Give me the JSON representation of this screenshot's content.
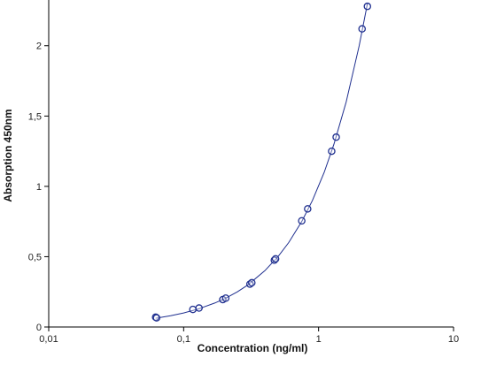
{
  "chart_data": {
    "type": "scatter",
    "title": "",
    "xlabel": "Concentration (ng/ml)",
    "ylabel": "Absorption 450nm",
    "x_scale": "log",
    "xlim": [
      0.01,
      10
    ],
    "ylim": [
      0,
      2.3
    ],
    "x_ticks": [
      0.01,
      0.1,
      1,
      10
    ],
    "x_tick_labels": [
      "0,01",
      "0,1",
      "1",
      "10"
    ],
    "y_ticks": [
      0,
      0.5,
      1,
      1.5,
      2
    ],
    "y_tick_labels": [
      "0",
      "0,5",
      "1",
      "1,5",
      "2"
    ],
    "grid": false,
    "legend": "none",
    "colors": {
      "points": "#1f2f8f",
      "curve": "#1f2f8f",
      "axis": "#000000"
    },
    "series": [
      {
        "points": [
          {
            "x": 0.062,
            "y": 0.07
          },
          {
            "x": 0.063,
            "y": 0.065
          },
          {
            "x": 0.117,
            "y": 0.125
          },
          {
            "x": 0.13,
            "y": 0.135
          },
          {
            "x": 0.195,
            "y": 0.195
          },
          {
            "x": 0.205,
            "y": 0.205
          },
          {
            "x": 0.31,
            "y": 0.305
          },
          {
            "x": 0.32,
            "y": 0.315
          },
          {
            "x": 0.47,
            "y": 0.475
          },
          {
            "x": 0.48,
            "y": 0.485
          },
          {
            "x": 0.75,
            "y": 0.755
          },
          {
            "x": 0.83,
            "y": 0.84
          },
          {
            "x": 1.25,
            "y": 1.25
          },
          {
            "x": 1.35,
            "y": 1.35
          },
          {
            "x": 2.1,
            "y": 2.12
          },
          {
            "x": 2.3,
            "y": 2.28
          }
        ],
        "fit_curve": [
          {
            "x": 0.062,
            "y": 0.062
          },
          {
            "x": 0.08,
            "y": 0.08
          },
          {
            "x": 0.1,
            "y": 0.1
          },
          {
            "x": 0.13,
            "y": 0.13
          },
          {
            "x": 0.17,
            "y": 0.17
          },
          {
            "x": 0.2,
            "y": 0.2
          },
          {
            "x": 0.25,
            "y": 0.25
          },
          {
            "x": 0.3,
            "y": 0.3
          },
          {
            "x": 0.4,
            "y": 0.4
          },
          {
            "x": 0.5,
            "y": 0.5
          },
          {
            "x": 0.6,
            "y": 0.6
          },
          {
            "x": 0.75,
            "y": 0.75
          },
          {
            "x": 0.9,
            "y": 0.9
          },
          {
            "x": 1.1,
            "y": 1.1
          },
          {
            "x": 1.3,
            "y": 1.3
          },
          {
            "x": 1.6,
            "y": 1.6
          },
          {
            "x": 2.0,
            "y": 2.0
          },
          {
            "x": 2.3,
            "y": 2.3
          }
        ]
      }
    ]
  }
}
